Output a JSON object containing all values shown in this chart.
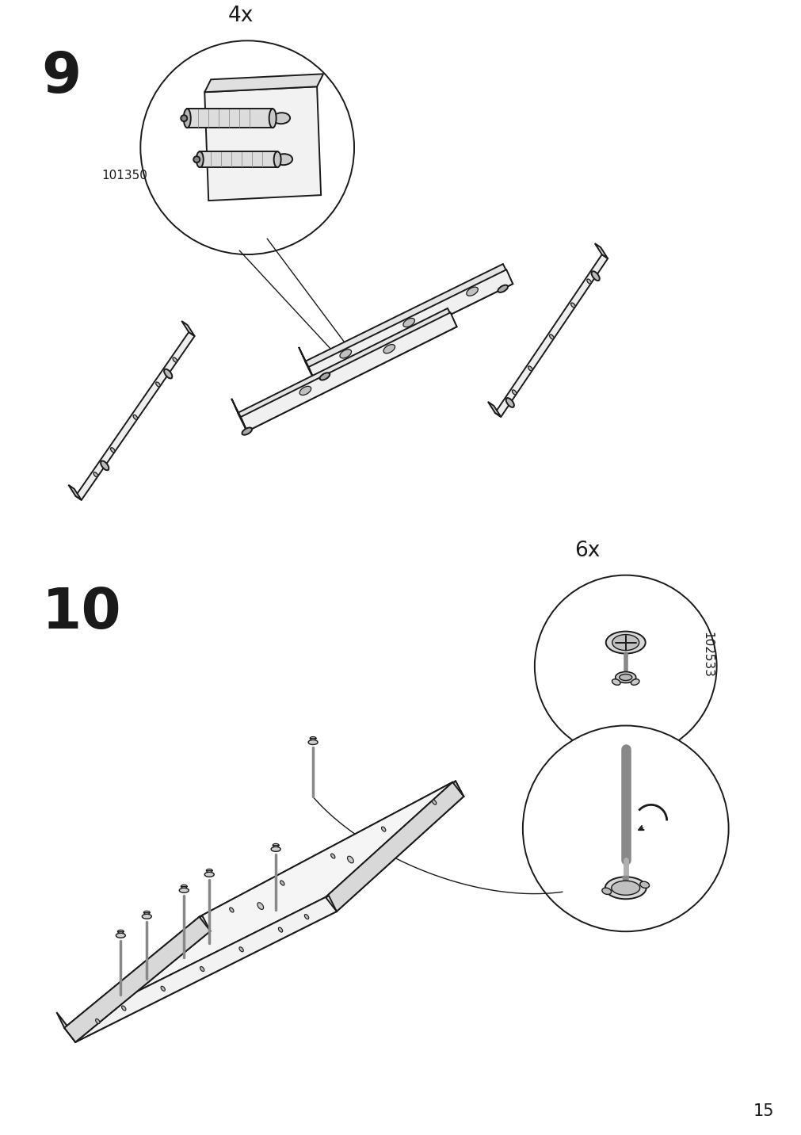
{
  "page_number": "15",
  "bg_color": "#ffffff",
  "line_color": "#1a1a1a",
  "step9_label": "9",
  "step10_label": "10",
  "quantity9_label": "4x",
  "quantity10_label": "6x",
  "part_number9": "101350",
  "part_number10": "102533",
  "figsize": [
    10.12,
    14.32
  ],
  "dpi": 100
}
